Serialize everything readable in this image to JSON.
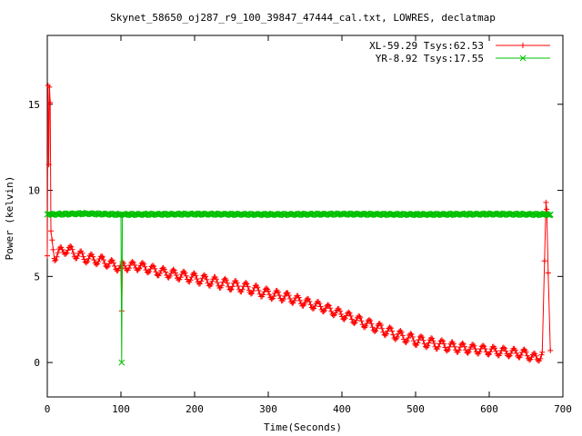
{
  "chart_data": {
    "type": "line",
    "title": "Skynet_58650_oj287_r9_100_39847_47444_cal.txt, LOWRES, declatmap",
    "xlabel": "Time(Seconds)",
    "ylabel": "Power (kelvin)",
    "xlim": [
      0,
      700
    ],
    "ylim": [
      -2,
      19
    ],
    "xticks": [
      0,
      100,
      200,
      300,
      400,
      500,
      600,
      700
    ],
    "yticks": [
      0,
      5,
      10,
      15
    ],
    "grid": false,
    "legend_position": "top-right",
    "series": [
      {
        "name": "XL-59.29 Tsys:62.53",
        "color": "#ff0000",
        "marker": "+",
        "description_points": [
          [
            0,
            6.2
          ],
          [
            1,
            16.1
          ],
          [
            2,
            11.5
          ],
          [
            3,
            16.0
          ],
          [
            4,
            15.1
          ],
          [
            5,
            7.4
          ],
          [
            10,
            6.2
          ],
          [
            25,
            6.6
          ],
          [
            50,
            6.1
          ],
          [
            75,
            5.9
          ],
          [
            100,
            5.5
          ],
          [
            101,
            3.0
          ],
          [
            102,
            5.6
          ],
          [
            125,
            5.6
          ],
          [
            150,
            5.3
          ],
          [
            175,
            5.1
          ],
          [
            200,
            4.9
          ],
          [
            225,
            4.7
          ],
          [
            250,
            4.5
          ],
          [
            275,
            4.3
          ],
          [
            300,
            4.0
          ],
          [
            325,
            3.8
          ],
          [
            350,
            3.5
          ],
          [
            375,
            3.2
          ],
          [
            400,
            2.8
          ],
          [
            425,
            2.4
          ],
          [
            450,
            2.0
          ],
          [
            475,
            1.6
          ],
          [
            500,
            1.3
          ],
          [
            525,
            1.1
          ],
          [
            550,
            0.9
          ],
          [
            575,
            0.8
          ],
          [
            600,
            0.7
          ],
          [
            625,
            0.6
          ],
          [
            650,
            0.5
          ],
          [
            665,
            0.2
          ],
          [
            672,
            0.6
          ],
          [
            675,
            5.9
          ],
          [
            677,
            9.3
          ],
          [
            678,
            8.9
          ],
          [
            680,
            5.2
          ],
          [
            683,
            0.7
          ]
        ]
      },
      {
        "name": "YR-8.92 Tsys:17.55",
        "color": "#00c000",
        "marker": "x",
        "description_points": [
          [
            0,
            8.6
          ],
          [
            50,
            8.65
          ],
          [
            99,
            8.6
          ],
          [
            100,
            8.6
          ],
          [
            101,
            0.0
          ],
          [
            102,
            8.6
          ],
          [
            200,
            8.62
          ],
          [
            300,
            8.6
          ],
          [
            400,
            8.62
          ],
          [
            500,
            8.6
          ],
          [
            600,
            8.62
          ],
          [
            683,
            8.6
          ]
        ]
      }
    ]
  }
}
